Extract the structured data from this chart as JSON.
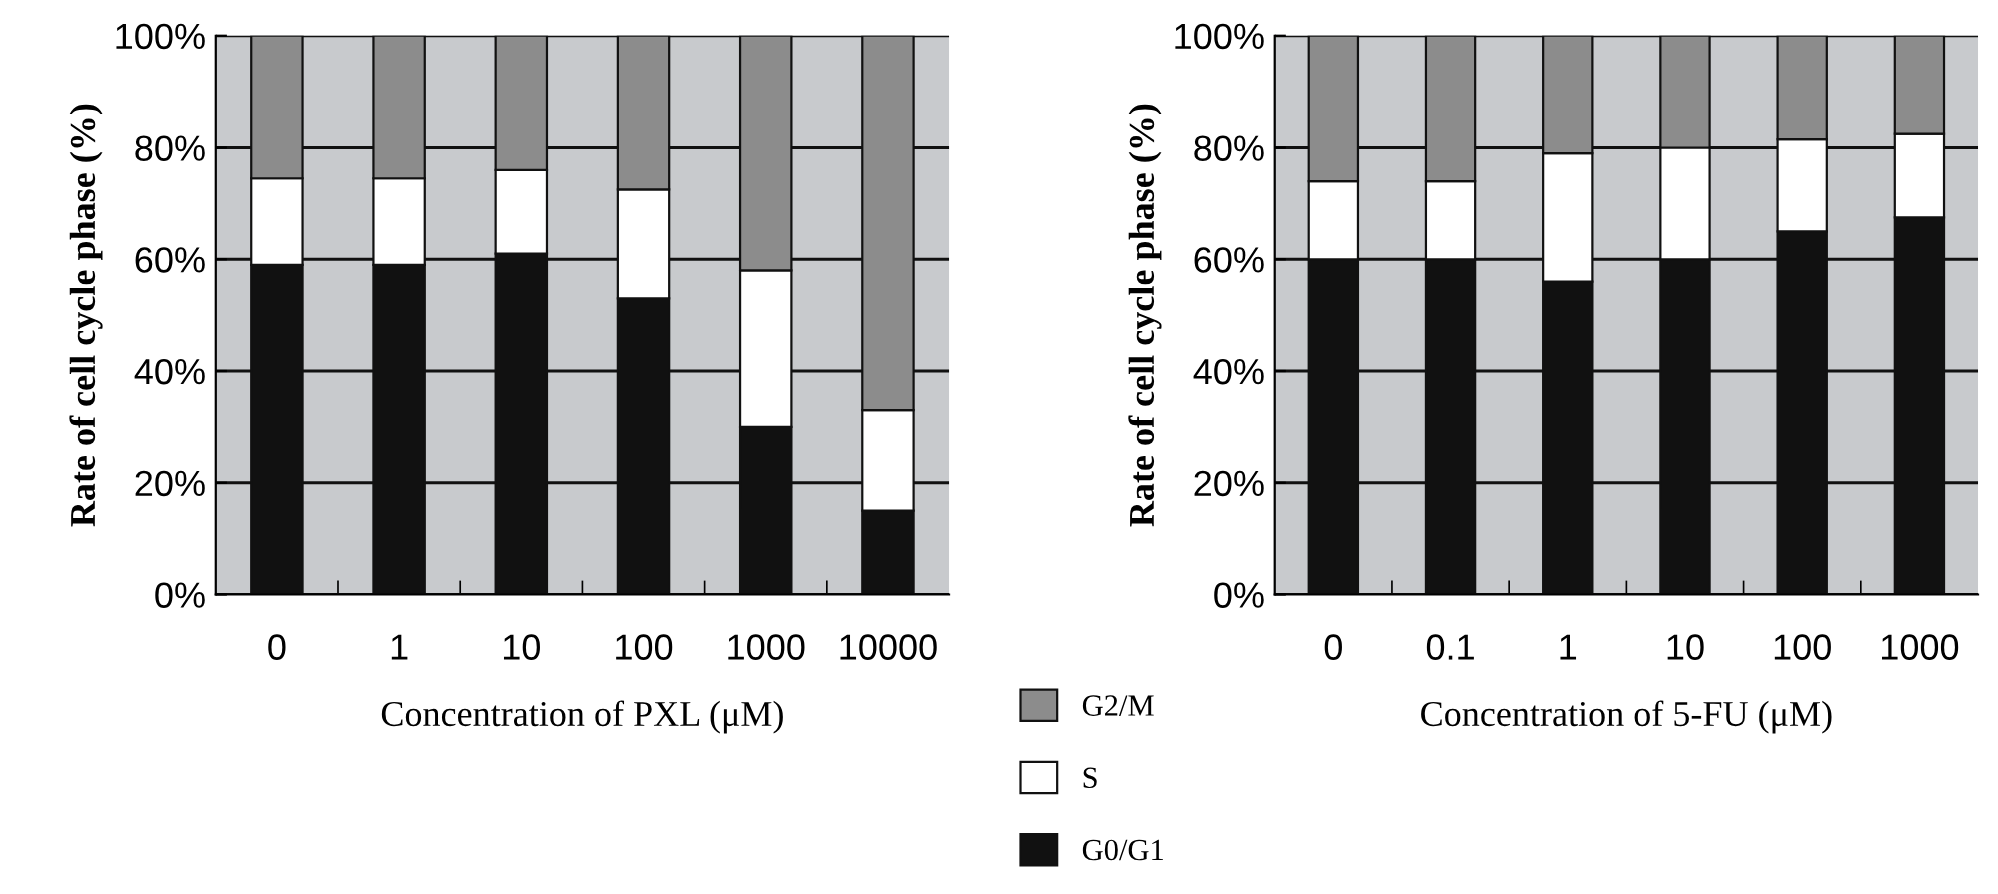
{
  "chart_data": [
    {
      "type": "bar",
      "stacked": true,
      "categories": [
        "0",
        "1",
        "10",
        "100",
        "1000",
        "10000"
      ],
      "xlabel": "Concentration of PXL (μM)",
      "ylabel": "Rate of cell cycle phase (%)",
      "ylim": [
        0,
        100
      ],
      "yticks": [
        {
          "value": 0,
          "label": "0%"
        },
        {
          "value": 20,
          "label": "20%"
        },
        {
          "value": 40,
          "label": "40%"
        },
        {
          "value": 60,
          "label": "60%"
        },
        {
          "value": 80,
          "label": "80%"
        },
        {
          "value": 100,
          "label": "100%"
        }
      ],
      "grid": "y",
      "legend": "bottom right",
      "series": [
        {
          "name": "G0/G1",
          "color": "#111111",
          "values": [
            59,
            59,
            61,
            53,
            30,
            15
          ]
        },
        {
          "name": "S",
          "color": "#ffffff",
          "values": [
            15.5,
            15.5,
            15,
            19.5,
            28,
            18
          ]
        },
        {
          "name": "G2/M",
          "color": "#8c8c8c",
          "values": [
            25.5,
            25.5,
            24,
            27.5,
            42,
            67
          ]
        }
      ]
    },
    {
      "type": "bar",
      "stacked": true,
      "categories": [
        "0",
        "0.1",
        "1",
        "10",
        "100",
        "1000"
      ],
      "xlabel": "Concentration of 5-FU (μM)",
      "ylabel": "Rate of cell cycle phase (%)",
      "ylim": [
        0,
        100
      ],
      "yticks": [
        {
          "value": 0,
          "label": "0%"
        },
        {
          "value": 20,
          "label": "20%"
        },
        {
          "value": 40,
          "label": "40%"
        },
        {
          "value": 60,
          "label": "60%"
        },
        {
          "value": 80,
          "label": "80%"
        },
        {
          "value": 100,
          "label": "100%"
        }
      ],
      "grid": "y",
      "series": [
        {
          "color": "#111111",
          "values": [
            60,
            60,
            56,
            60,
            65,
            67.5
          ]
        },
        {
          "color": "#ffffff",
          "values": [
            14,
            14,
            23,
            20,
            16.5,
            15
          ]
        },
        {
          "color": "#8c8c8c",
          "values": [
            26,
            26,
            21,
            20,
            18.5,
            17.5
          ]
        }
      ]
    }
  ]
}
